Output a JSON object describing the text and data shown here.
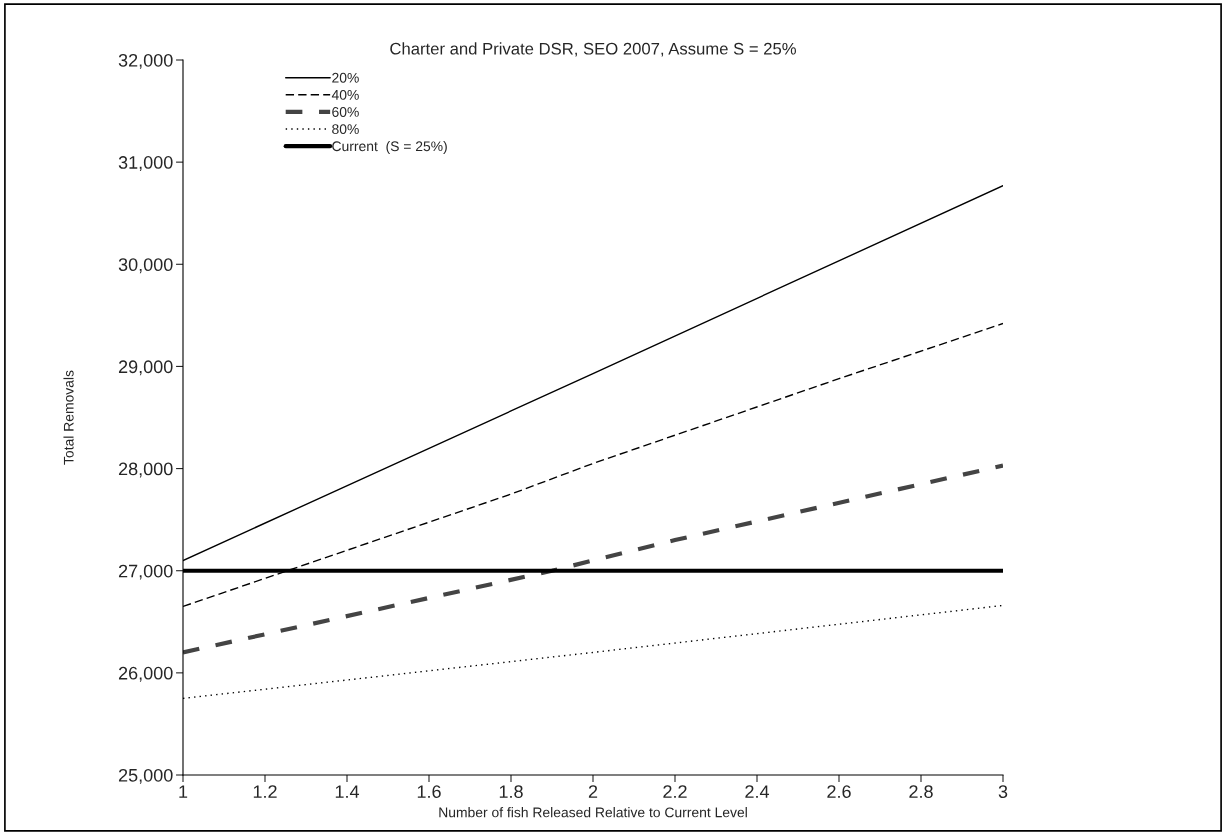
{
  "chart_data": {
    "type": "line",
    "title": "Charter and Private DSR, SEO 2007, Assume S = 25%",
    "xlabel": "Number of fish Released Relative to Current Level",
    "ylabel": "Total Removals",
    "xlim": [
      1,
      3
    ],
    "xticks": [
      1,
      {
        "value": 1.2,
        "label": "1.2"
      },
      {
        "value": 1.4,
        "label": "1.4"
      },
      {
        "value": 1.6,
        "label": "1.6"
      },
      {
        "value": 1.8,
        "label": "1.8"
      },
      2,
      {
        "value": 2.2,
        "label": "2.2"
      },
      {
        "value": 2.4,
        "label": "2.4"
      },
      {
        "value": 2.6,
        "label": "2.6"
      },
      {
        "value": 2.8,
        "label": "2.8"
      },
      3
    ],
    "ylim": [
      25000,
      32000
    ],
    "yticks": [
      {
        "value": 25000,
        "label": "25,000"
      },
      {
        "value": 26000,
        "label": "26,000"
      },
      {
        "value": 27000,
        "label": "27,000"
      },
      {
        "value": 28000,
        "label": "28,000"
      },
      {
        "value": 29000,
        "label": "29,000"
      },
      {
        "value": 30000,
        "label": "30,000"
      },
      {
        "value": 31000,
        "label": "31,000"
      },
      {
        "value": 32000,
        "label": "32,000"
      }
    ],
    "grid": false,
    "legend": "top left",
    "marker": "none",
    "series": [
      {
        "name": "20%",
        "color": "#000000",
        "line_style": "solid",
        "x": [
          1,
          2,
          3
        ],
        "values": [
          27100,
          28930,
          30770
        ]
      },
      {
        "name": "40%",
        "color": "#000000",
        "line_style": "dashed",
        "x": [
          1,
          1.8,
          2,
          2.6,
          3
        ],
        "values": [
          26650,
          27750,
          28050,
          28880,
          29420
        ]
      },
      {
        "name": "60%",
        "color": "#444444",
        "line_style": "dashed",
        "x": [
          1,
          1.9,
          2,
          2.2,
          3
        ],
        "values": [
          26200,
          27000,
          27100,
          27300,
          28030
        ]
      },
      {
        "name": "80%",
        "color": "#000000",
        "line_style": "dotted",
        "x": [
          1,
          2,
          3
        ],
        "values": [
          25750,
          26200,
          26660
        ]
      },
      {
        "name": "Current  (S = 25%)",
        "color": "#000000",
        "line_style": "solid",
        "x": [
          1,
          3
        ],
        "values": [
          27000,
          27000
        ]
      }
    ]
  }
}
